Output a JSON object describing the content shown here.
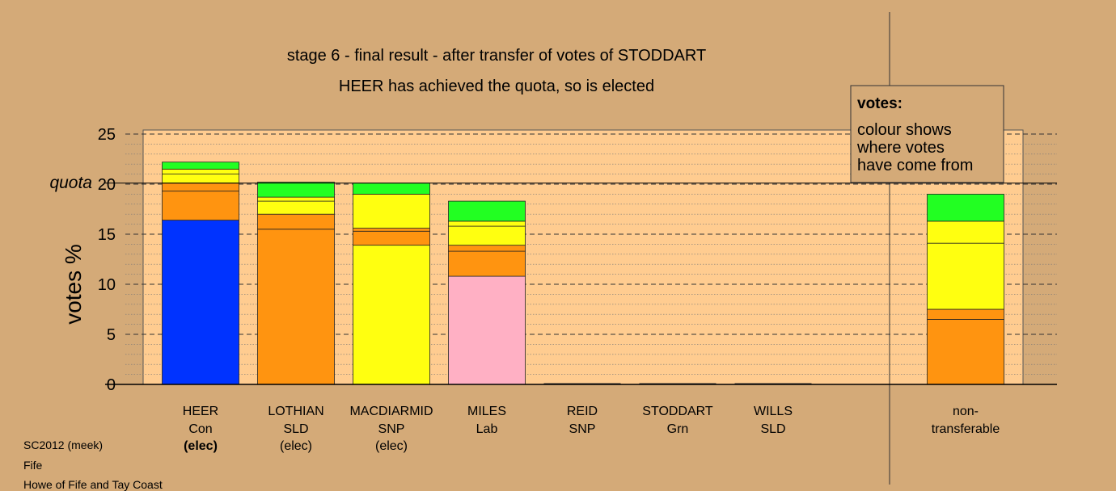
{
  "chart_data": {
    "type": "bar",
    "stacked": true,
    "title": "stage 6 - final result - after transfer of votes of STODDART",
    "subtitle": "HEER has achieved the quota, so is elected",
    "ylabel": "votes %",
    "ylim": [
      0,
      25
    ],
    "yticks": [
      "0",
      "5",
      "10",
      "15",
      "20",
      "25"
    ],
    "quota_label": "quota",
    "quota": 20.1,
    "grid": true,
    "legend": {
      "title": "votes:",
      "lines": [
        "colour shows",
        "where votes",
        "have come from"
      ],
      "position": "top-right"
    },
    "colors": {
      "Con": "#0033ff",
      "SLD": "#ff9410",
      "SNP": "#ffff10",
      "Lab": "#ffb0c4",
      "Grn": "#22ff22",
      "SNP2": "#ffff44"
    },
    "candidates": [
      {
        "name": "HEER",
        "party": "Con",
        "status": "(elec)",
        "bold_status": true,
        "segments": [
          {
            "source": "Con",
            "value": 16.4,
            "color": "#0033ff"
          },
          {
            "source": "SLD",
            "value": 2.9,
            "color": "#ff9410"
          },
          {
            "source": "SLD",
            "value": 0.8,
            "color": "#ff9410"
          },
          {
            "source": "SNP",
            "value": 0.9,
            "color": "#ffff10"
          },
          {
            "source": "SNP",
            "value": 0.5,
            "color": "#ffff10"
          },
          {
            "source": "Grn",
            "value": 0.7,
            "color": "#22ff22"
          }
        ]
      },
      {
        "name": "LOTHIAN",
        "party": "SLD",
        "status": "(elec)",
        "bold_status": false,
        "segments": [
          {
            "source": "SLD",
            "value": 15.5,
            "color": "#ff9410"
          },
          {
            "source": "SLD",
            "value": 1.5,
            "color": "#ff9410"
          },
          {
            "source": "SNP",
            "value": 1.3,
            "color": "#ffff10"
          },
          {
            "source": "SNP",
            "value": 0.4,
            "color": "#ffff10"
          },
          {
            "source": "Grn",
            "value": 1.5,
            "color": "#22ff22"
          }
        ]
      },
      {
        "name": "MACDIARMID",
        "party": "SNP",
        "status": "(elec)",
        "bold_status": false,
        "segments": [
          {
            "source": "SNP",
            "value": 13.9,
            "color": "#ffff10"
          },
          {
            "source": "SLD",
            "value": 1.4,
            "color": "#ff9410"
          },
          {
            "source": "SLD",
            "value": 0.3,
            "color": "#ff9410"
          },
          {
            "source": "SNP",
            "value": 3.4,
            "color": "#ffff10"
          },
          {
            "source": "Grn",
            "value": 1.1,
            "color": "#22ff22"
          }
        ]
      },
      {
        "name": "MILES",
        "party": "Lab",
        "status": "",
        "bold_status": false,
        "segments": [
          {
            "source": "Lab",
            "value": 10.8,
            "color": "#ffb0c4"
          },
          {
            "source": "SLD",
            "value": 2.5,
            "color": "#ff9410"
          },
          {
            "source": "SLD",
            "value": 0.6,
            "color": "#ff9410"
          },
          {
            "source": "SNP",
            "value": 1.9,
            "color": "#ffff10"
          },
          {
            "source": "SNP",
            "value": 0.5,
            "color": "#ffff10"
          },
          {
            "source": "Grn",
            "value": 2.0,
            "color": "#22ff22"
          }
        ]
      },
      {
        "name": "REID",
        "party": "SNP",
        "status": "",
        "bold_status": false,
        "segments": []
      },
      {
        "name": "STODDART",
        "party": "Grn",
        "status": "",
        "bold_status": false,
        "segments": []
      },
      {
        "name": "WILLS",
        "party": "SLD",
        "status": "",
        "bold_status": false,
        "segments": []
      }
    ],
    "nontransferable": {
      "name": "non-",
      "name2": "transferable",
      "segments": [
        {
          "source": "SLD",
          "value": 6.5,
          "color": "#ff9410"
        },
        {
          "source": "SLD",
          "value": 1.0,
          "color": "#ff9410"
        },
        {
          "source": "SNP",
          "value": 6.6,
          "color": "#ffff10"
        },
        {
          "source": "SNP",
          "value": 2.2,
          "color": "#ffff10"
        },
        {
          "source": "Grn",
          "value": 2.7,
          "color": "#22ff22"
        }
      ]
    }
  },
  "footer": {
    "line1": "SC2012 (meek)",
    "line2": "Fife",
    "line3": "Howe of Fife and Tay Coast"
  }
}
